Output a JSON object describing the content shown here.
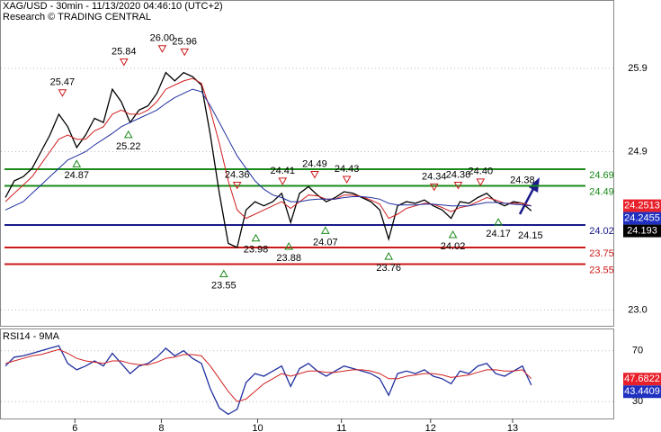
{
  "chart_data": [
    {
      "type": "line",
      "title": "XAG/USD - 30min - 11/13/2020 04:46:10 (UTC+2)",
      "subtitle": "Research © TRADING CENTRAL",
      "xlim": [
        -0.5,
        68.2
      ],
      "ylim": [
        22.81,
        26.71
      ],
      "xticks": [
        {
          "value": 7.8,
          "label": "6"
        },
        {
          "value": 17.5,
          "label": "8"
        },
        {
          "value": 28.3,
          "label": "10"
        },
        {
          "value": 37.7,
          "label": "11"
        },
        {
          "value": 47.7,
          "label": "12"
        },
        {
          "value": 56.9,
          "label": "13"
        }
      ],
      "yticks": [
        25.9,
        24.9,
        {
          "value": 23,
          "label": "23.0"
        }
      ],
      "grid": true,
      "series": [
        {
          "color": "#000000",
          "values": [
            24.35,
            24.55,
            24.6,
            24.7,
            24.9,
            25.1,
            25.35,
            25.2,
            24.95,
            25.1,
            25.3,
            25.25,
            25.65,
            25.5,
            25.25,
            25.4,
            25.45,
            25.6,
            25.85,
            25.75,
            25.85,
            25.8,
            25.7,
            25.1,
            24.4,
            23.8,
            23.75,
            24.2,
            24.3,
            24.25,
            24.3,
            24.4,
            24.05,
            24.4,
            24.48,
            24.38,
            24.3,
            24.35,
            24.42,
            24.4,
            24.35,
            24.3,
            24.2,
            23.85,
            24.25,
            24.3,
            24.28,
            24.32,
            24.25,
            24.2,
            24.1,
            24.3,
            24.28,
            24.35,
            24.4,
            24.3,
            24.25,
            24.3,
            24.28,
            24.19
          ]
        },
        {
          "color": "#d02020",
          "values": [
            24.3,
            24.4,
            24.5,
            24.6,
            24.75,
            24.9,
            25.05,
            25.1,
            25.05,
            25.05,
            25.15,
            25.2,
            25.35,
            25.4,
            25.35,
            25.35,
            25.4,
            25.5,
            25.65,
            25.7,
            25.75,
            25.78,
            25.72,
            25.4,
            25.0,
            24.55,
            24.2,
            24.1,
            24.15,
            24.2,
            24.25,
            24.3,
            24.22,
            24.3,
            24.38,
            24.37,
            24.33,
            24.33,
            24.38,
            24.38,
            24.36,
            24.32,
            24.27,
            24.1,
            24.15,
            24.22,
            24.25,
            24.28,
            24.27,
            24.23,
            24.18,
            24.23,
            24.25,
            24.3,
            24.35,
            24.32,
            24.28,
            24.28,
            24.28,
            24.25
          ]
        },
        {
          "color": "#2030a0",
          "values": [
            24.2,
            24.25,
            24.3,
            24.4,
            24.5,
            24.6,
            24.7,
            24.8,
            24.85,
            24.9,
            24.98,
            25.05,
            25.12,
            25.2,
            25.25,
            25.3,
            25.35,
            25.4,
            25.48,
            25.55,
            25.6,
            25.65,
            25.62,
            25.45,
            25.25,
            25.05,
            24.85,
            24.7,
            24.55,
            24.45,
            24.38,
            24.35,
            24.3,
            24.3,
            24.32,
            24.33,
            24.33,
            24.33,
            24.35,
            24.36,
            24.36,
            24.35,
            24.33,
            24.28,
            24.26,
            24.26,
            24.26,
            24.27,
            24.27,
            24.26,
            24.25,
            24.25,
            24.25,
            24.27,
            24.29,
            24.29,
            24.28,
            24.27,
            24.26,
            24.25
          ]
        }
      ],
      "levels": [
        {
          "value": 24.69,
          "color": "#1a8a1a"
        },
        {
          "value": 24.49,
          "color": "#1a8a1a"
        },
        {
          "value": 24.02,
          "color": "#1a1a8a"
        },
        {
          "value": 23.75,
          "color": "#cc1a1a"
        },
        {
          "value": 23.55,
          "color": "#cc1a1a"
        }
      ],
      "annotations": [
        {
          "x": 6.4,
          "value": 25.47,
          "kind": "high"
        },
        {
          "x": 13.3,
          "value": 25.84,
          "kind": "high"
        },
        {
          "x": 17.6,
          "value": 26,
          "label": "26.00",
          "kind": "high"
        },
        {
          "x": 20.1,
          "value": 25.96,
          "kind": "high"
        },
        {
          "x": 8,
          "value": 24.87,
          "kind": "low"
        },
        {
          "x": 13.8,
          "value": 25.22,
          "kind": "low"
        },
        {
          "x": 24.5,
          "value": 23.55,
          "kind": "low"
        },
        {
          "x": 26,
          "value": 24.36,
          "kind": "high"
        },
        {
          "x": 28.1,
          "value": 23.98,
          "kind": "low"
        },
        {
          "x": 31.1,
          "value": 24.41,
          "kind": "high"
        },
        {
          "x": 31.8,
          "value": 23.88,
          "kind": "low"
        },
        {
          "x": 34.7,
          "value": 24.49,
          "kind": "high"
        },
        {
          "x": 35.9,
          "value": 24.07,
          "kind": "low"
        },
        {
          "x": 38.3,
          "value": 24.43,
          "kind": "high"
        },
        {
          "x": 43,
          "value": 23.76,
          "kind": "low"
        },
        {
          "x": 48.1,
          "value": 24.34,
          "kind": "high"
        },
        {
          "x": 50.2,
          "value": 24.02,
          "kind": "low"
        },
        {
          "x": 50.8,
          "value": 24.36,
          "kind": "high"
        },
        {
          "x": 53.3,
          "value": 24.4,
          "label": "24.40",
          "kind": "high"
        },
        {
          "x": 55.3,
          "value": 24.17,
          "kind": "low"
        },
        {
          "x": 58.9,
          "value": 24.15,
          "kind": "text-low"
        },
        {
          "x": 58,
          "value": 24.38,
          "kind": "text-high"
        }
      ],
      "boxes": [
        {
          "value": 24.2513,
          "color": "#e8202a"
        },
        {
          "value": 24.2455,
          "color": "#2030c0"
        },
        {
          "value": 24.193,
          "color": "#000000"
        }
      ]
    },
    {
      "type": "line",
      "title": "RSI14 - 9MA",
      "xlim": [
        -0.5,
        68.2
      ],
      "ylim": [
        16.7,
        86.8
      ],
      "yticks": [
        70,
        30
      ],
      "grid": true,
      "series": [
        {
          "color": "#2030a0",
          "values": [
            58,
            65,
            66,
            68,
            70,
            72,
            74,
            60,
            55,
            58,
            62,
            58,
            68,
            60,
            52,
            58,
            60,
            65,
            72,
            66,
            70,
            64,
            60,
            40,
            25,
            20,
            24,
            45,
            52,
            50,
            54,
            58,
            42,
            56,
            60,
            54,
            50,
            54,
            58,
            56,
            54,
            52,
            48,
            35,
            52,
            54,
            52,
            55,
            50,
            48,
            44,
            54,
            52,
            58,
            60,
            52,
            50,
            54,
            58,
            43
          ]
        },
        {
          "color": "#d02020",
          "values": [
            60,
            62,
            64,
            66,
            67,
            69,
            71,
            68,
            64,
            62,
            61,
            60,
            62,
            62,
            60,
            59,
            59,
            61,
            64,
            65,
            67,
            67,
            66,
            58,
            48,
            38,
            30,
            32,
            38,
            44,
            48,
            52,
            50,
            52,
            54,
            54,
            53,
            53,
            54,
            55,
            55,
            54,
            52,
            48,
            48,
            50,
            51,
            52,
            52,
            51,
            49,
            50,
            51,
            53,
            55,
            55,
            54,
            54,
            55,
            48
          ]
        }
      ],
      "boxes": [
        {
          "value": 47.6822,
          "color": "#e8202a"
        },
        {
          "value": 43.4409,
          "color": "#2030c0"
        }
      ]
    }
  ]
}
